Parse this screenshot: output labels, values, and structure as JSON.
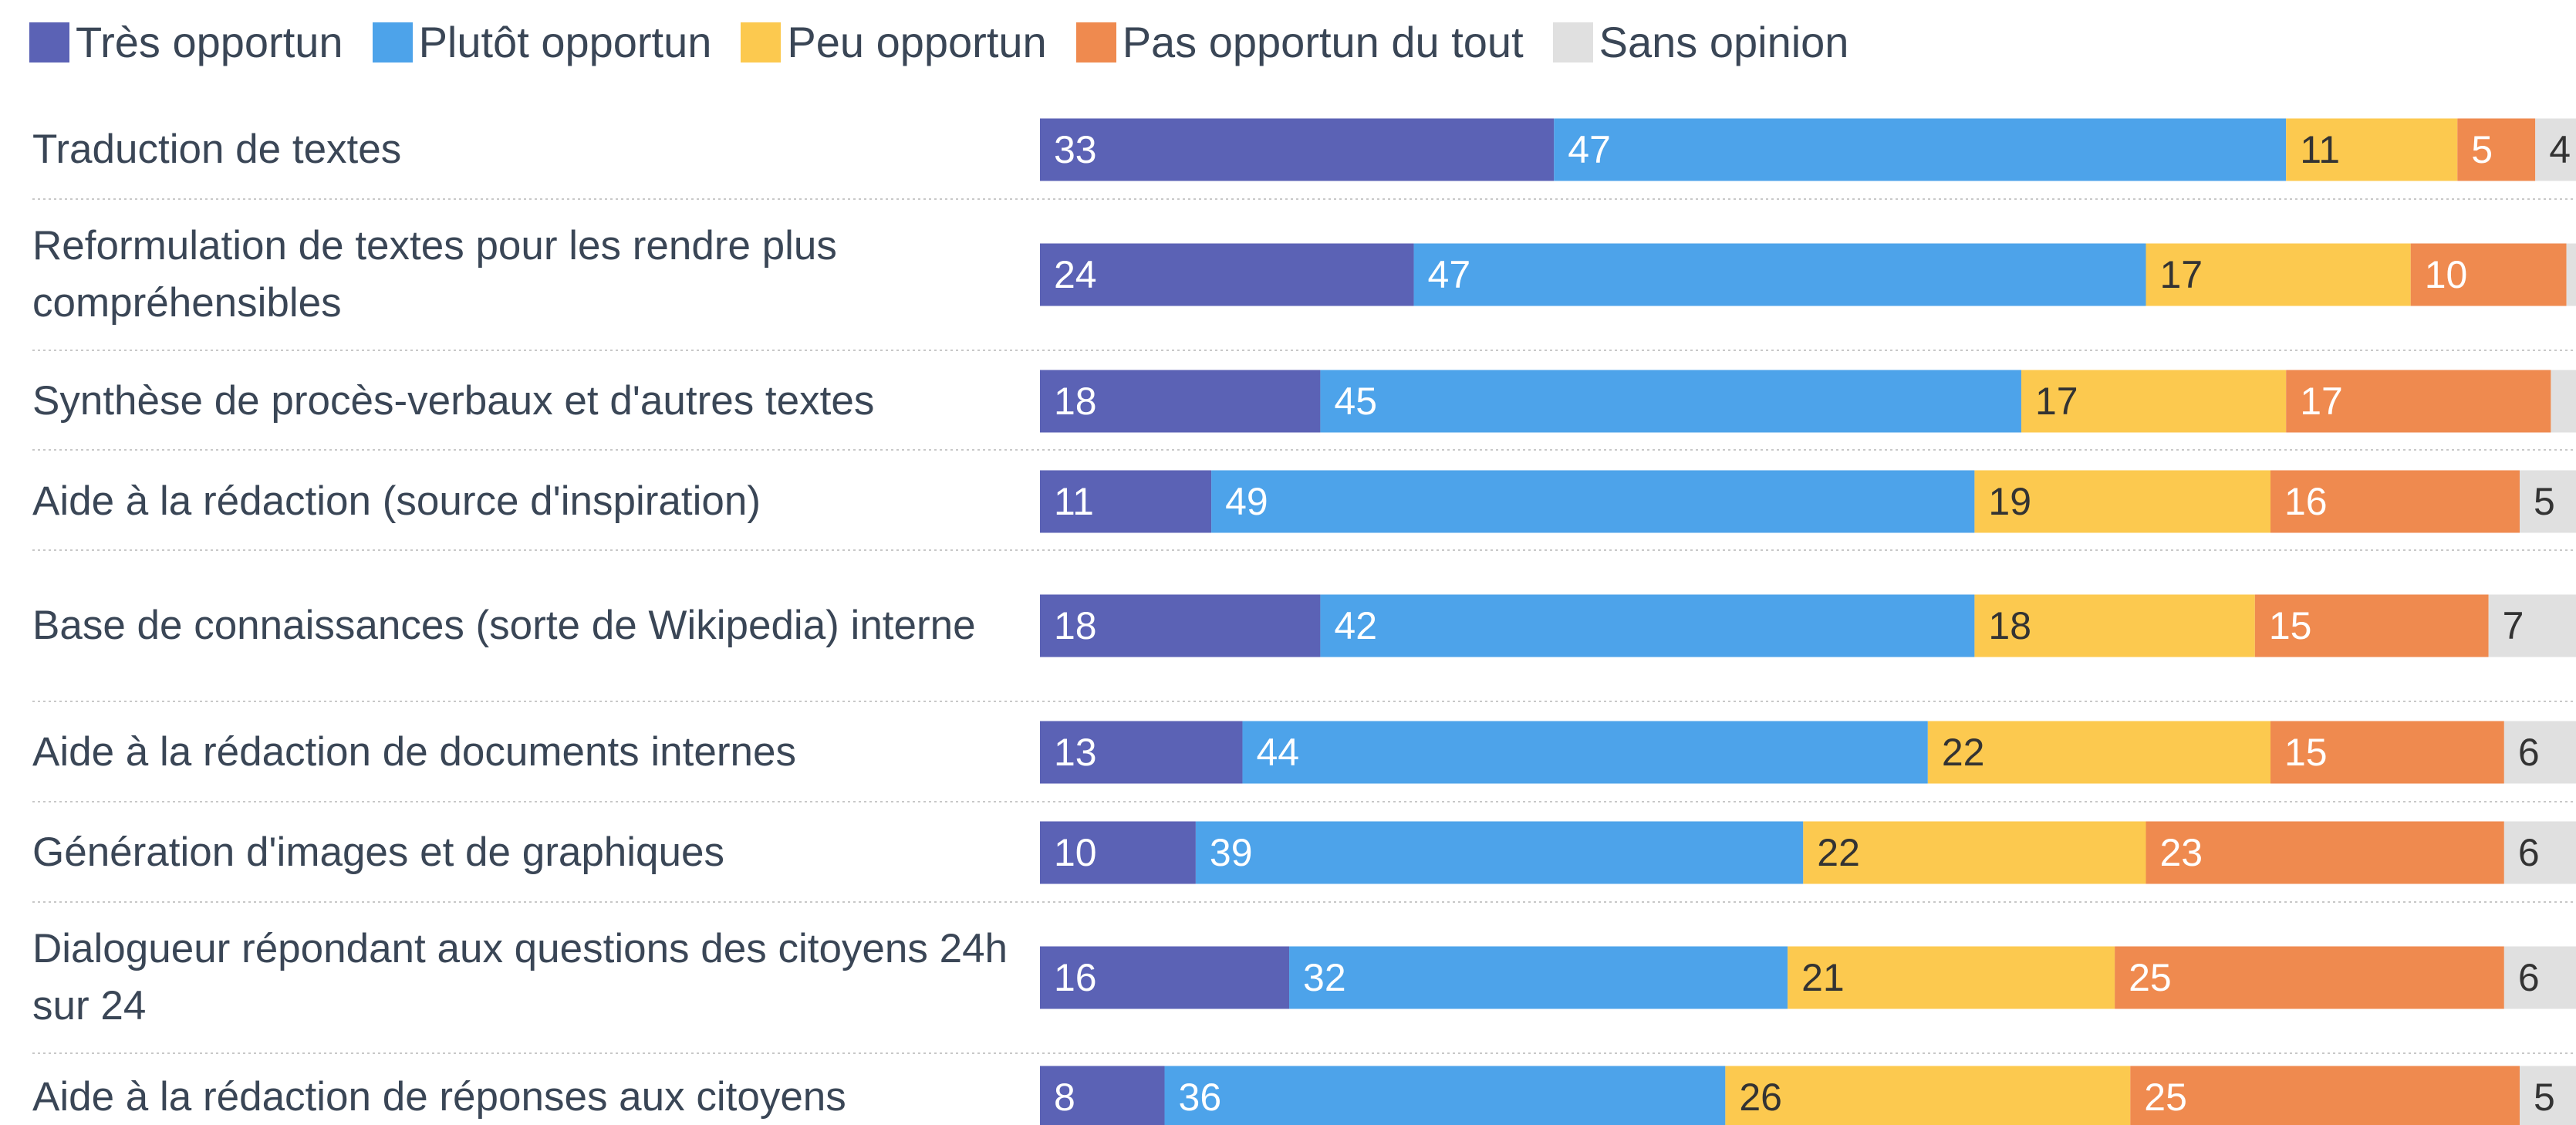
{
  "chart_data": {
    "type": "bar",
    "orientation": "horizontal",
    "stacked": true,
    "categories": [
      "Traduction de textes",
      "Reformulation de textes pour les rendre plus compréhensibles",
      "Synthèse de procès-verbaux et d'autres textes",
      "Aide à la rédaction (source d'inspiration)",
      "Base de connaissances (sorte de Wikipedia) interne",
      "Aide à la rédaction de documents internes",
      "Génération d'images et de graphiques",
      "Dialogueur répondant aux questions des citoyens 24h sur 24",
      "Aide à la rédaction de réponses aux citoyens"
    ],
    "xlim": [
      0,
      100
    ],
    "legend": "top-left",
    "series": [
      {
        "name": "Très opportun",
        "color": "#5b62b5",
        "values": [
          33,
          24,
          18,
          11,
          18,
          13,
          10,
          16,
          8
        ]
      },
      {
        "name": "Plutôt opportun",
        "color": "#4da3ea",
        "values": [
          47,
          47,
          45,
          49,
          42,
          44,
          39,
          32,
          36
        ]
      },
      {
        "name": "Peu opportun",
        "color": "#fcc94f",
        "values": [
          11,
          17,
          17,
          19,
          18,
          22,
          22,
          21,
          26
        ]
      },
      {
        "name": "Pas opportun du tout",
        "color": "#ef8a4f",
        "values": [
          5,
          10,
          17,
          16,
          15,
          15,
          23,
          25,
          25
        ]
      },
      {
        "name": "Sans opinion",
        "color": "#e0e0e0",
        "values": [
          4,
          2,
          3,
          5,
          7,
          6,
          6,
          6,
          5
        ]
      }
    ]
  }
}
